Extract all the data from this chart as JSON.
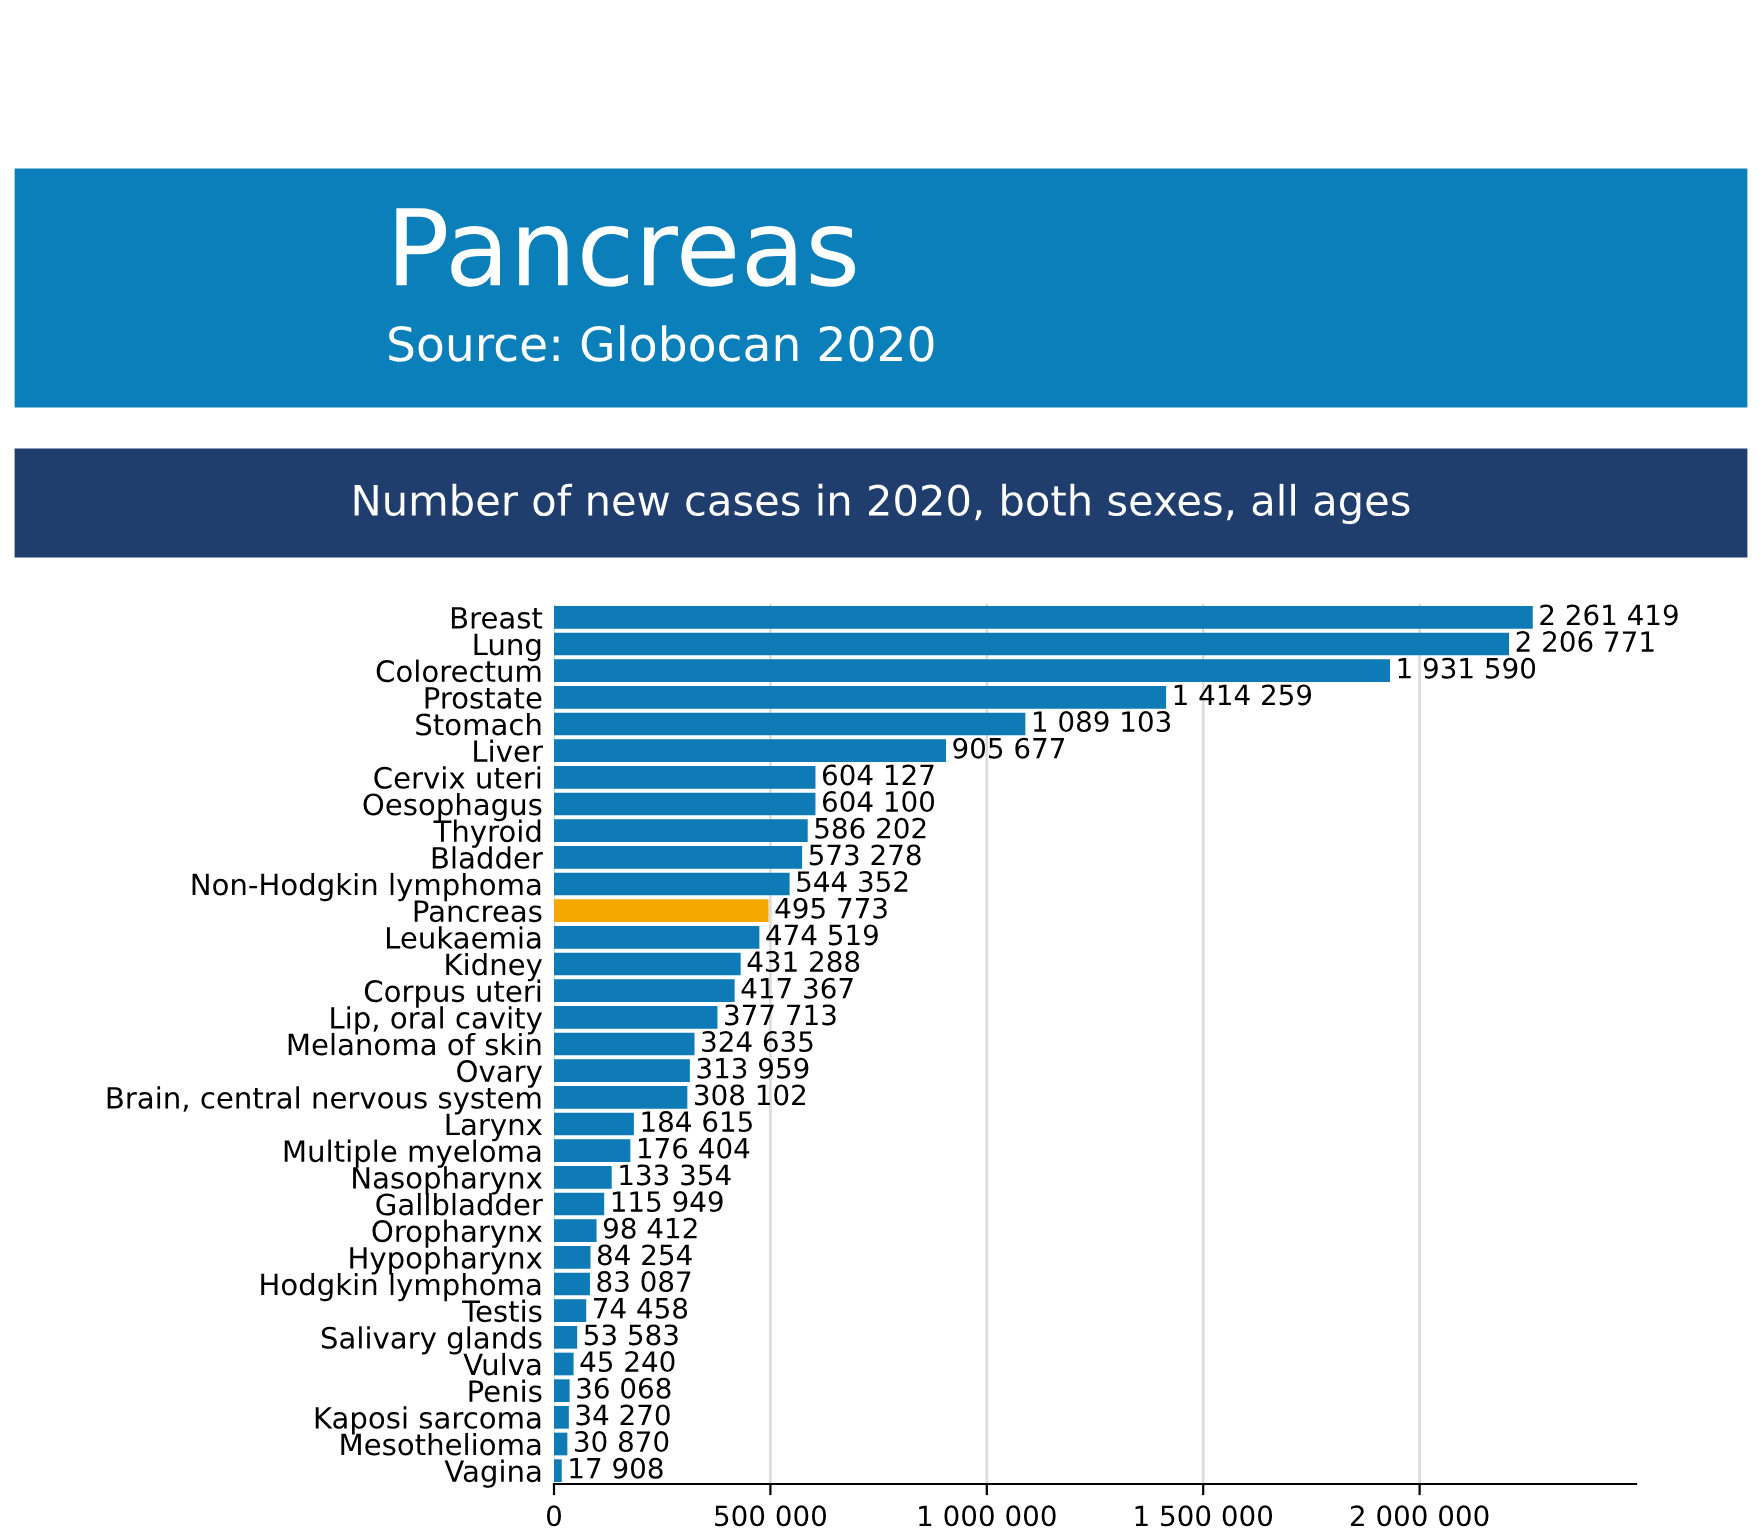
{
  "chart_data": {
    "type": "bar",
    "orientation": "horizontal",
    "title": "Pancreas",
    "subtitle": "Source: Globocan 2020",
    "annotations": [
      "Number of new cases in 2020, both sexes, all ages"
    ],
    "categories": [
      "Breast",
      "Lung",
      "Colorectum",
      "Prostate",
      "Stomach",
      "Liver",
      "Cervix uteri",
      "Oesophagus",
      "Thyroid",
      "Bladder",
      "Non-Hodgkin lymphoma",
      "Pancreas",
      "Leukaemia",
      "Kidney",
      "Corpus uteri",
      "Lip, oral cavity",
      "Melanoma of skin",
      "Ovary",
      "Brain, central nervous system",
      "Larynx",
      "Multiple myeloma",
      "Nasopharynx",
      "Gallbladder",
      "Oropharynx",
      "Hypopharynx",
      "Hodgkin lymphoma",
      "Testis",
      "Salivary glands",
      "Vulva",
      "Penis",
      "Kaposi sarcoma",
      "Mesothelioma",
      "Vagina"
    ],
    "values": [
      2261419,
      2206771,
      1931590,
      1414259,
      1089103,
      905677,
      604127,
      604100,
      586202,
      573278,
      544352,
      495773,
      474519,
      431288,
      417367,
      377713,
      324635,
      313959,
      308102,
      184615,
      176404,
      133354,
      115949,
      98412,
      84254,
      83087,
      74458,
      53583,
      45240,
      36068,
      34270,
      30870,
      17908
    ],
    "value_labels": [
      "2 261 419",
      "2 206 771",
      "1 931 590",
      "1 414 259",
      "1 089 103",
      "905 677",
      "604 127",
      "604 100",
      "586 202",
      "573 278",
      "544 352",
      "495 773",
      "474 519",
      "431 288",
      "417 367",
      "377 713",
      "324 635",
      "313 959",
      "308 102",
      "184 615",
      "176 404",
      "133 354",
      "115 949",
      "98 412",
      "84 254",
      "83 087",
      "74 458",
      "53 583",
      "45 240",
      "36 068",
      "34 270",
      "30 870",
      "17 908"
    ],
    "colors": [
      "#0e7bb6",
      "#0e7bb6",
      "#0e7bb6",
      "#0e7bb6",
      "#0e7bb6",
      "#0e7bb6",
      "#0e7bb6",
      "#0e7bb6",
      "#0e7bb6",
      "#0e7bb6",
      "#0e7bb6",
      "#f5a800",
      "#0e7bb6",
      "#0e7bb6",
      "#0e7bb6",
      "#0e7bb6",
      "#0e7bb6",
      "#0e7bb6",
      "#0e7bb6",
      "#0e7bb6",
      "#0e7bb6",
      "#0e7bb6",
      "#0e7bb6",
      "#0e7bb6",
      "#0e7bb6",
      "#0e7bb6",
      "#0e7bb6",
      "#0e7bb6",
      "#0e7bb6",
      "#0e7bb6",
      "#0e7bb6",
      "#0e7bb6",
      "#0e7bb6"
    ],
    "xlim": [
      0,
      2500000
    ],
    "xticks": [
      {
        "value": 0,
        "label": "0"
      },
      {
        "value": 500000,
        "label": "500 000"
      },
      {
        "value": 1000000,
        "label": "1 000 000"
      },
      {
        "value": 1500000,
        "label": "1 500 000"
      },
      {
        "value": 2000000,
        "label": "2 000 000"
      }
    ],
    "grid": "x"
  }
}
